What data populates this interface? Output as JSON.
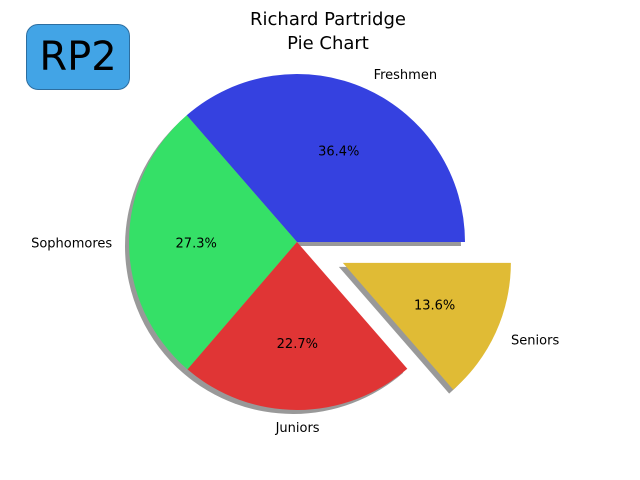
{
  "badge": {
    "text": "RP2",
    "color": "#42a4e6"
  },
  "chart_data": {
    "type": "pie",
    "title": [
      "Richard Partridge",
      "Pie Chart"
    ],
    "shadow": true,
    "start_angle_deg": 0,
    "direction": "counterclockwise",
    "slices": [
      {
        "label": "Freshmen",
        "value": 36.4,
        "pct_label": "36.4%",
        "color": "#3541e0",
        "explode": false
      },
      {
        "label": "Sophomores",
        "value": 27.3,
        "pct_label": "27.3%",
        "color": "#35e067",
        "explode": false
      },
      {
        "label": "Juniors",
        "value": 22.7,
        "pct_label": "22.7%",
        "color": "#e03535",
        "explode": false
      },
      {
        "label": "Seniors",
        "value": 13.6,
        "pct_label": "13.6%",
        "color": "#e0bb35",
        "explode": true
      }
    ]
  }
}
